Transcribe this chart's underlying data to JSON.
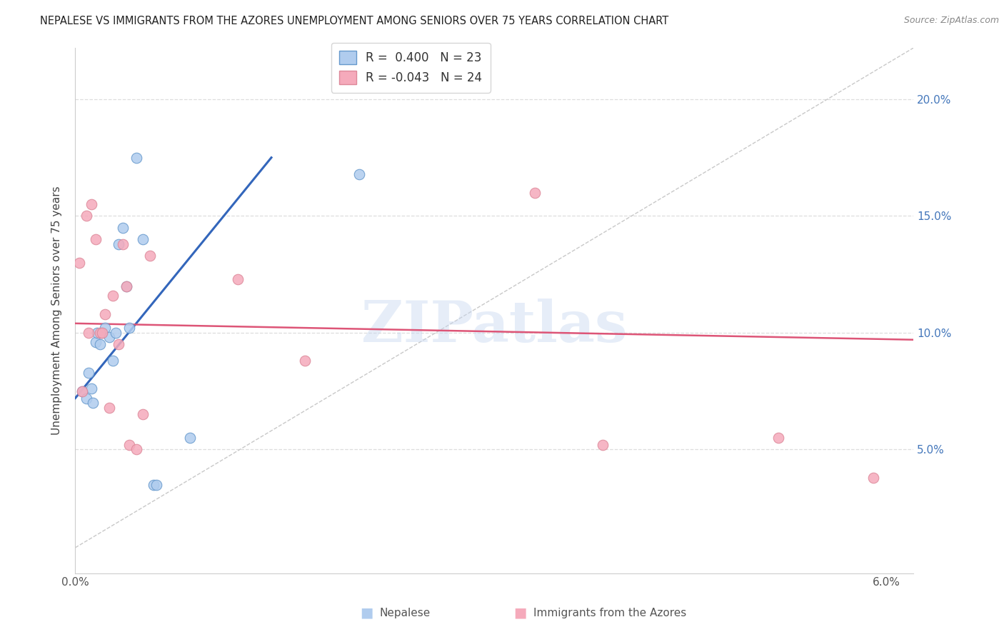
{
  "title": "NEPALESE VS IMMIGRANTS FROM THE AZORES UNEMPLOYMENT AMONG SENIORS OVER 75 YEARS CORRELATION CHART",
  "source": "Source: ZipAtlas.com",
  "ylabel": "Unemployment Among Seniors over 75 years",
  "xlim": [
    0.0,
    0.062
  ],
  "ylim": [
    -0.003,
    0.222
  ],
  "xtick_positions": [
    0.0,
    0.01,
    0.02,
    0.03,
    0.04,
    0.05,
    0.06
  ],
  "xtick_labels": [
    "0.0%",
    "",
    "",
    "",
    "",
    "",
    "6.0%"
  ],
  "ytick_positions": [
    0.0,
    0.05,
    0.1,
    0.15,
    0.2
  ],
  "right_ytick_labels": [
    "",
    "5.0%",
    "10.0%",
    "15.0%",
    "20.0%"
  ],
  "nepalese_x": [
    0.0005,
    0.0008,
    0.001,
    0.0012,
    0.0013,
    0.0015,
    0.0016,
    0.0018,
    0.002,
    0.0022,
    0.0025,
    0.0028,
    0.003,
    0.0032,
    0.0035,
    0.0038,
    0.004,
    0.0045,
    0.005,
    0.0058,
    0.006,
    0.0085,
    0.021
  ],
  "nepalese_y": [
    0.075,
    0.072,
    0.083,
    0.076,
    0.07,
    0.096,
    0.1,
    0.095,
    0.1,
    0.102,
    0.098,
    0.088,
    0.1,
    0.138,
    0.145,
    0.12,
    0.102,
    0.175,
    0.14,
    0.035,
    0.035,
    0.055,
    0.168
  ],
  "azores_x": [
    0.0003,
    0.0005,
    0.0008,
    0.001,
    0.0012,
    0.0015,
    0.0018,
    0.002,
    0.0022,
    0.0025,
    0.0028,
    0.0032,
    0.0035,
    0.0038,
    0.004,
    0.0045,
    0.005,
    0.0055,
    0.012,
    0.017,
    0.034,
    0.039,
    0.052,
    0.059
  ],
  "azores_y": [
    0.13,
    0.075,
    0.15,
    0.1,
    0.155,
    0.14,
    0.1,
    0.1,
    0.108,
    0.068,
    0.116,
    0.095,
    0.138,
    0.12,
    0.052,
    0.05,
    0.065,
    0.133,
    0.123,
    0.088,
    0.16,
    0.052,
    0.055,
    0.038
  ],
  "blue_line_x": [
    0.0,
    0.0145
  ],
  "blue_line_y": [
    0.072,
    0.175
  ],
  "pink_line_x": [
    0.0,
    0.062
  ],
  "pink_line_y": [
    0.104,
    0.097
  ],
  "diag_line_x": [
    0.0,
    0.062
  ],
  "diag_line_y": [
    0.008,
    0.222
  ],
  "watermark": "ZIPatlas",
  "bg_color": "#ffffff",
  "dot_size": 110,
  "blue_fill": "#b0ccee",
  "blue_edge": "#6699cc",
  "pink_fill": "#f5aabb",
  "pink_edge": "#dd8899",
  "blue_line_color": "#3366bb",
  "pink_line_color": "#dd5577",
  "diag_color": "#bbbbbb",
  "grid_color": "#dddddd",
  "right_axis_color": "#4477bb",
  "legend_blue_label": "R =  0.400   N = 23",
  "legend_pink_label": "R = -0.043   N = 24"
}
